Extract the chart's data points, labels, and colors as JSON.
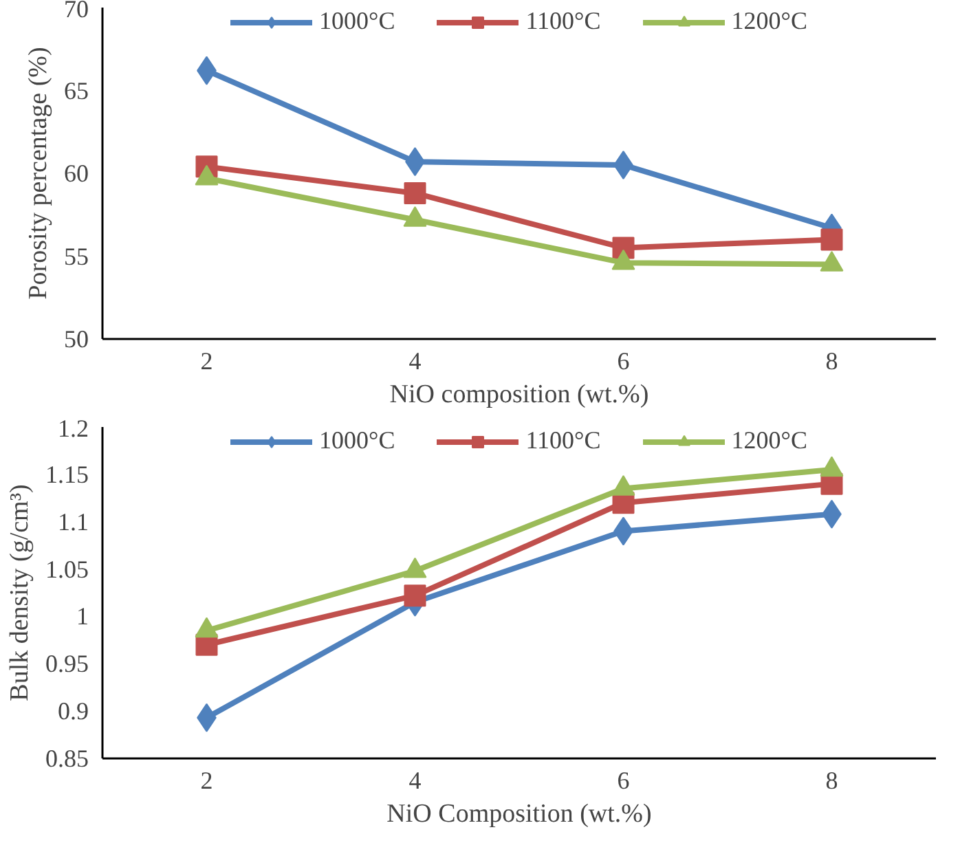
{
  "chart_data": [
    {
      "type": "line",
      "xlabel": "NiO composition (wt.%)",
      "ylabel": "Porosity percentage (%)",
      "categories": [
        "2",
        "4",
        "6",
        "8"
      ],
      "ylim": [
        50,
        70
      ],
      "yticks": [
        50,
        55,
        60,
        65,
        70
      ],
      "grid": false,
      "legend": "top",
      "series": [
        {
          "name": "1000°C",
          "color": "#4f81bd",
          "marker": "diamond",
          "values": [
            66.2,
            60.7,
            60.5,
            56.7
          ]
        },
        {
          "name": "1100°C",
          "color": "#c0504d",
          "marker": "square",
          "values": [
            60.4,
            58.8,
            55.5,
            56.0
          ]
        },
        {
          "name": "1200°C",
          "color": "#9bbb59",
          "marker": "triangle",
          "values": [
            59.7,
            57.2,
            54.6,
            54.5
          ]
        }
      ]
    },
    {
      "type": "line",
      "xlabel": "NiO Composition (wt.%)",
      "ylabel": "Bulk density (g/cm³)",
      "categories": [
        "2",
        "4",
        "6",
        "8"
      ],
      "ylim": [
        0.85,
        1.2
      ],
      "yticks": [
        0.85,
        0.9,
        0.95,
        1,
        1.05,
        1.1,
        1.15,
        1.2
      ],
      "grid": false,
      "legend": "top",
      "series": [
        {
          "name": "1000°C",
          "color": "#4f81bd",
          "marker": "diamond",
          "values": [
            0.893,
            1.015,
            1.09,
            1.108
          ]
        },
        {
          "name": "1100°C",
          "color": "#c0504d",
          "marker": "square",
          "values": [
            0.97,
            1.022,
            1.12,
            1.14
          ]
        },
        {
          "name": "1200°C",
          "color": "#9bbb59",
          "marker": "triangle",
          "values": [
            0.985,
            1.048,
            1.135,
            1.155
          ]
        }
      ]
    }
  ]
}
